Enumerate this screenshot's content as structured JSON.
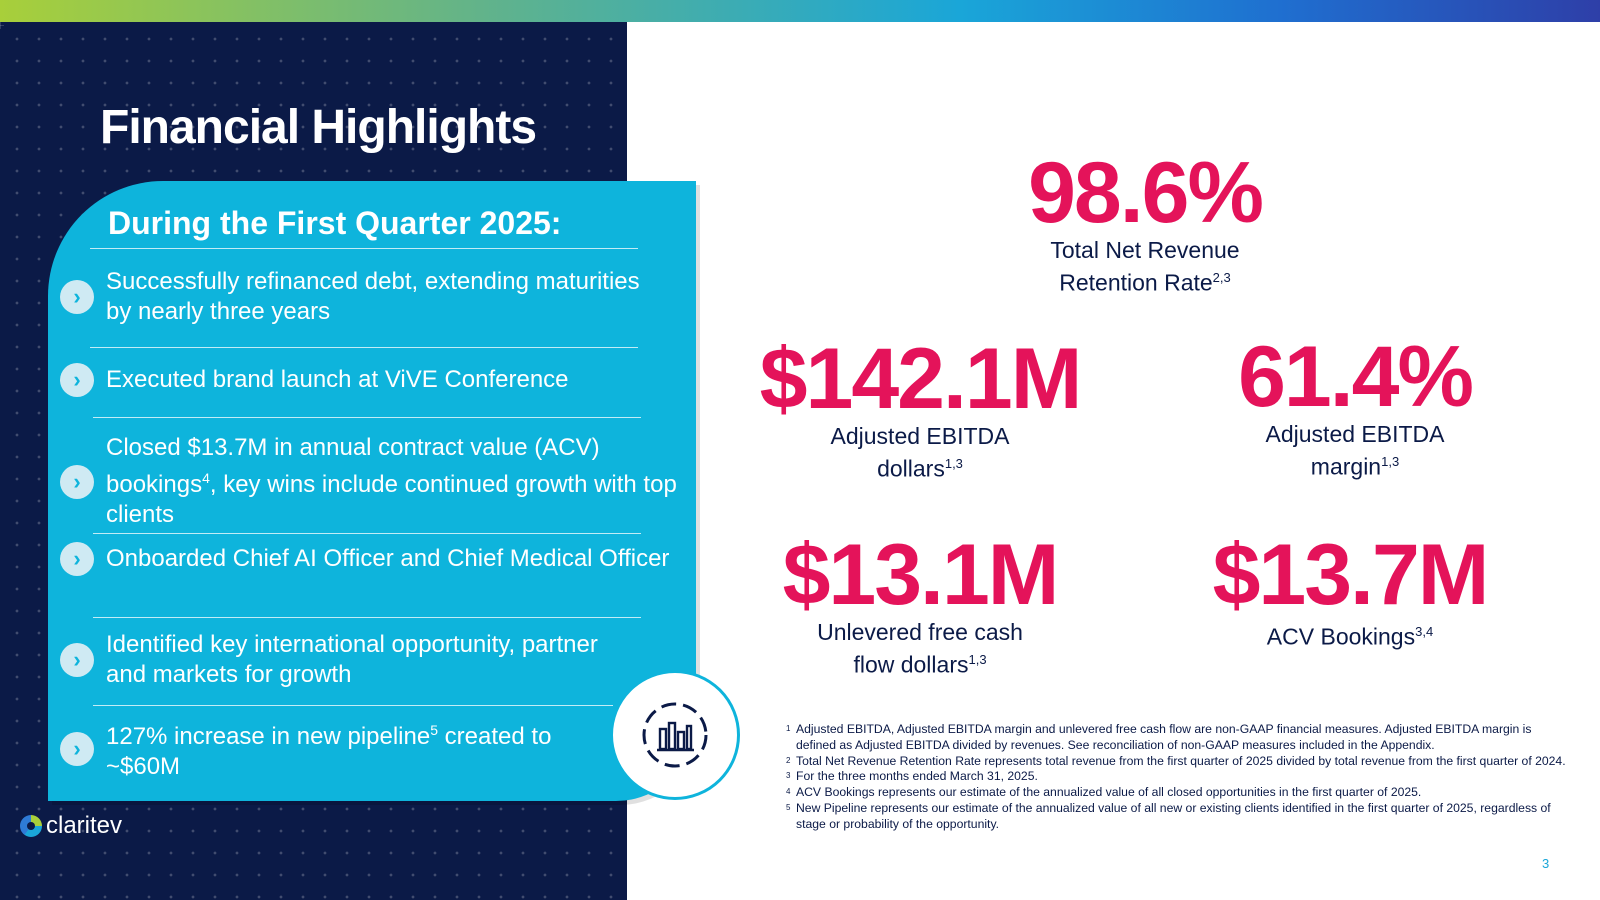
{
  "title": "Financial Highlights",
  "card": {
    "heading": "During the First Quarter 2025:",
    "bullets": [
      {
        "text": "Successfully refinanced debt, extending maturities by nearly three years"
      },
      {
        "text": "Executed brand launch at ViVE Conference"
      },
      {
        "text_a": "Closed $13.7M in annual contract value (ACV) bookings",
        "sup": "4",
        "text_b": ", key wins include continued growth with top clients"
      },
      {
        "text": "Onboarded Chief AI Officer and Chief Medical Officer"
      },
      {
        "text": "Identified key international opportunity, partner and markets for growth"
      },
      {
        "text_a": "127% increase in new pipeline",
        "sup": "5",
        "text_b": " created to ~$60M"
      }
    ]
  },
  "brand": {
    "name": "claritev"
  },
  "icons": {
    "bullet": "chevron-right-icon",
    "chart": "bar-chart-icon",
    "chevron_char": "›"
  },
  "metrics": {
    "nrr": {
      "value": "98.6%",
      "label_line1": "Total Net Revenue",
      "label_line2": "Retention Rate",
      "sup": "2,3"
    },
    "ebitda_dollars": {
      "value": "$142.1M",
      "label_line1": "Adjusted EBITDA",
      "label_line2": "dollars",
      "sup": "1,3"
    },
    "ebitda_margin": {
      "value": "61.4%",
      "label_line1": "Adjusted EBITDA",
      "label_line2": "margin",
      "sup": "1,3"
    },
    "fcf": {
      "value": "$13.1M",
      "label_line1": "Unlevered free cash",
      "label_line2": "flow dollars",
      "sup": "1,3"
    },
    "acv": {
      "value": "$13.7M",
      "label_line1": "ACV Bookings",
      "sup": "3,4"
    }
  },
  "footnotes": [
    {
      "n": "1",
      "text": "Adjusted EBITDA, Adjusted EBITDA margin and unlevered free cash flow are non-GAAP financial measures. Adjusted EBITDA margin is defined as Adjusted EBITDA divided by revenues. See reconciliation of non-GAAP measures included in the Appendix."
    },
    {
      "n": "2",
      "text": "Total Net Revenue Retention Rate represents total revenue from the first quarter of 2025 divided by total revenue from the first quarter of 2024."
    },
    {
      "n": "3",
      "text": "For the three months ended March 31, 2025."
    },
    {
      "n": "4",
      "text": "ACV Bookings represents our estimate of the annualized value of all closed opportunities in the first quarter of 2025."
    },
    {
      "n": "5",
      "text": "New Pipeline represents our estimate of the annualized value of all new or existing clients identified in the first quarter of 2025, regardless of stage or probability of the opportunity."
    }
  ],
  "page_number": "3",
  "colors": {
    "navy": "#0b1a47",
    "cyan": "#0eb4dc",
    "magenta": "#e4135a"
  }
}
